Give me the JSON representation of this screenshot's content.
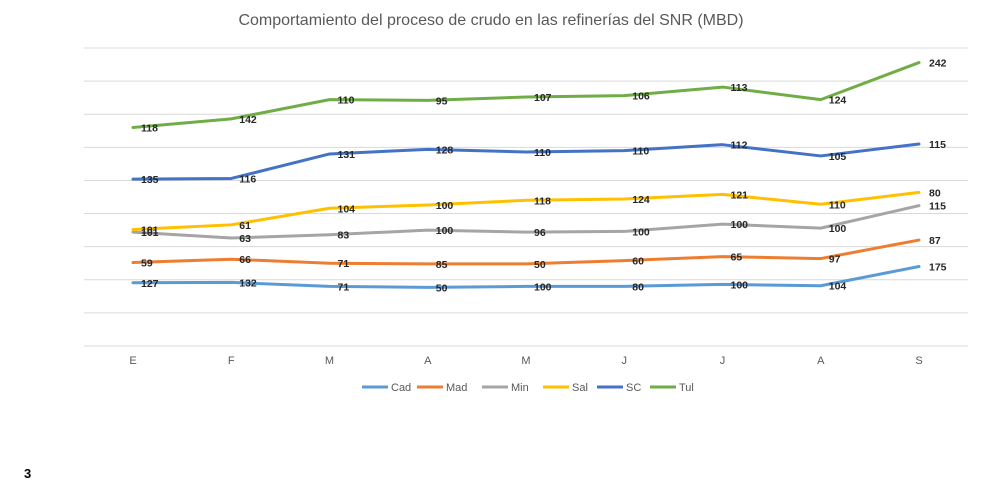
{
  "page_number": "3",
  "chart_data": {
    "type": "line",
    "title": "Comportamiento del proceso de crudo en las refinerías del SNR (MBD)",
    "categories": [
      "E",
      "F",
      "M",
      "A",
      "M",
      "J",
      "J",
      "A",
      "S"
    ],
    "grid": true,
    "legend_position": "bottom",
    "series": [
      {
        "name": "Cad",
        "color": "#5b9bd5",
        "values": [
          127,
          132,
          71,
          50,
          100,
          80,
          100,
          104,
          175
        ],
        "plot_positions": [
          95.5,
          96,
          90,
          88.5,
          90,
          90,
          93,
          91,
          120
        ]
      },
      {
        "name": "Mad",
        "color": "#ed7d31",
        "values": [
          59,
          66,
          71,
          85,
          50,
          60,
          65,
          97,
          87
        ],
        "plot_positions": [
          126,
          131,
          125,
          124,
          124,
          129,
          135,
          132,
          160
        ]
      },
      {
        "name": "Min",
        "color": "#a5a5a5",
        "values": [
          101,
          63,
          83,
          100,
          96,
          100,
          100,
          100,
          115
        ],
        "plot_positions": [
          172,
          163,
          168,
          175,
          172,
          173,
          184,
          178,
          212
        ]
      },
      {
        "name": "Sal",
        "color": "#ffc000",
        "values": [
          101,
          61,
          104,
          100,
          118,
          124,
          121,
          110,
          80
        ],
        "plot_positions": [
          176,
          183,
          208,
          213,
          220,
          222,
          229,
          214,
          232
        ]
      },
      {
        "name": "SC",
        "color": "#4472c4",
        "values": [
          135,
          116,
          131,
          128,
          110,
          110,
          112,
          105,
          115
        ],
        "plot_positions": [
          252,
          253,
          290,
          297,
          293,
          295,
          304,
          287,
          305
        ]
      },
      {
        "name": "Tul",
        "color": "#70ad47",
        "values": [
          118,
          142,
          110,
          95,
          107,
          106,
          113,
          124,
          242
        ],
        "plot_positions": [
          330,
          343,
          372,
          371,
          376,
          378,
          391,
          372,
          428
        ]
      }
    ]
  }
}
